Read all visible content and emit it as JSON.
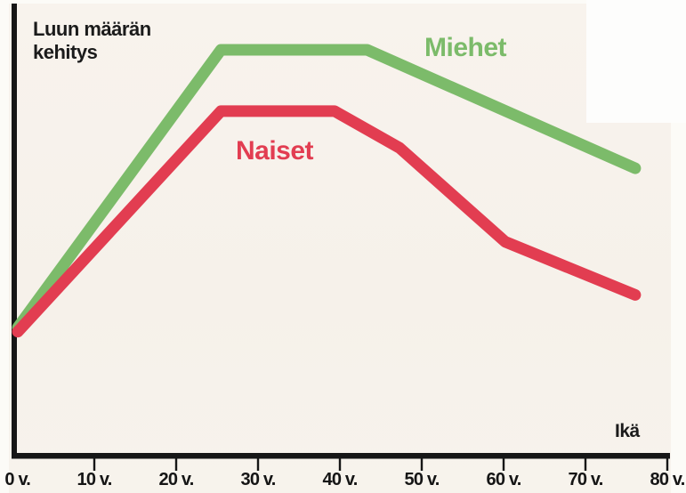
{
  "chart": {
    "title": "Luun määrän kehitys",
    "title_lines": [
      "Luun määrän",
      "kehitys"
    ],
    "xlabel": "Ikä",
    "series_labels": {
      "miehet": "Miehet",
      "naiset": "Naiset"
    },
    "colors": {
      "miehet_green": "#7cbb6a",
      "naiset_red": "#e23d51",
      "axis_black": "#161616",
      "paper_cream": "#f7f2eb",
      "page_white": "#fcfbf7"
    }
  },
  "chart_data": {
    "type": "line",
    "title": "Luun määrän kehitys",
    "xlabel": "Ikä",
    "ylabel": "",
    "x_ticks": [
      "0 v.",
      "10 v.",
      "20 v.",
      "30 v.",
      "40 v.",
      "50 v.",
      "60 v.",
      "70 v.",
      "80 v."
    ],
    "x_range": [
      0,
      80
    ],
    "y_relative_range": [
      0,
      100
    ],
    "grid": false,
    "legend": "inline-series-labels",
    "series": [
      {
        "name": "Miehet",
        "color": "#7cbb6a",
        "points": [
          [
            0,
            32
          ],
          [
            25,
            100
          ],
          [
            43,
            100
          ],
          [
            76,
            71
          ]
        ]
      },
      {
        "name": "Naiset",
        "color": "#e23d51",
        "points": [
          [
            0,
            31
          ],
          [
            25,
            85
          ],
          [
            39,
            85
          ],
          [
            47,
            76
          ],
          [
            60,
            53
          ],
          [
            76,
            40
          ]
        ]
      }
    ]
  }
}
